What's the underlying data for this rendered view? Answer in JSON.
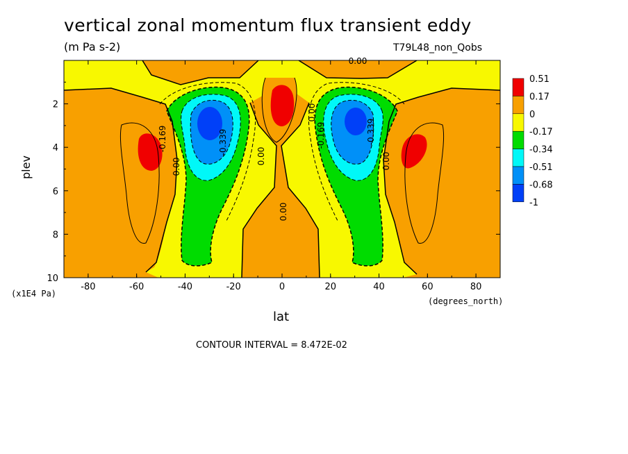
{
  "chart_data": {
    "type": "heatmap",
    "subtype": "filled-contour",
    "title": "vertical zonal momentum flux transient eddy",
    "units": "(m Pa s-2)",
    "run_label": "T79L48_non_Qobs",
    "xlabel": "lat",
    "x_units": "(degrees_north)",
    "ylabel": "plev",
    "y_units": "(x1E4 Pa)",
    "xlim": [
      -90,
      90
    ],
    "ylim": [
      10,
      0
    ],
    "x_ticks": [
      "-80",
      "-60",
      "-40",
      "-20",
      "0",
      "20",
      "40",
      "60",
      "80"
    ],
    "y_ticks": [
      "2",
      "4",
      "6",
      "8",
      "10"
    ],
    "contour_interval_text": "CONTOUR INTERVAL = 8.472E-02",
    "colorbar": {
      "labels": [
        "0.51",
        "0.17",
        "0",
        "-0.17",
        "-0.34",
        "-0.51",
        "-0.68",
        "-1"
      ],
      "colors": [
        "#f00000",
        "#f8a000",
        "#f8f800",
        "#00dc00",
        "#00f8f8",
        "#0090f8",
        "#0040f8"
      ]
    },
    "contour_labels": [
      "0.00",
      "0.00",
      "0.00",
      "0.00",
      "0.00",
      "0.00",
      "-0.169",
      "-0.339",
      "-0.169",
      "-0.339",
      "0.00"
    ],
    "fields": {
      "maxima": [
        {
          "lat": -55,
          "plev": 4.5,
          "approx_value": 0.2
        },
        {
          "lat": 55,
          "plev": 4.3,
          "approx_value": 0.2
        },
        {
          "lat": 0,
          "plev": 2.5,
          "approx_value": 0.2
        }
      ],
      "minima": [
        {
          "lat": -30,
          "plev": 3.2,
          "approx_value": -0.68
        },
        {
          "lat": 30,
          "plev": 3.0,
          "approx_value": -0.68
        }
      ]
    }
  }
}
